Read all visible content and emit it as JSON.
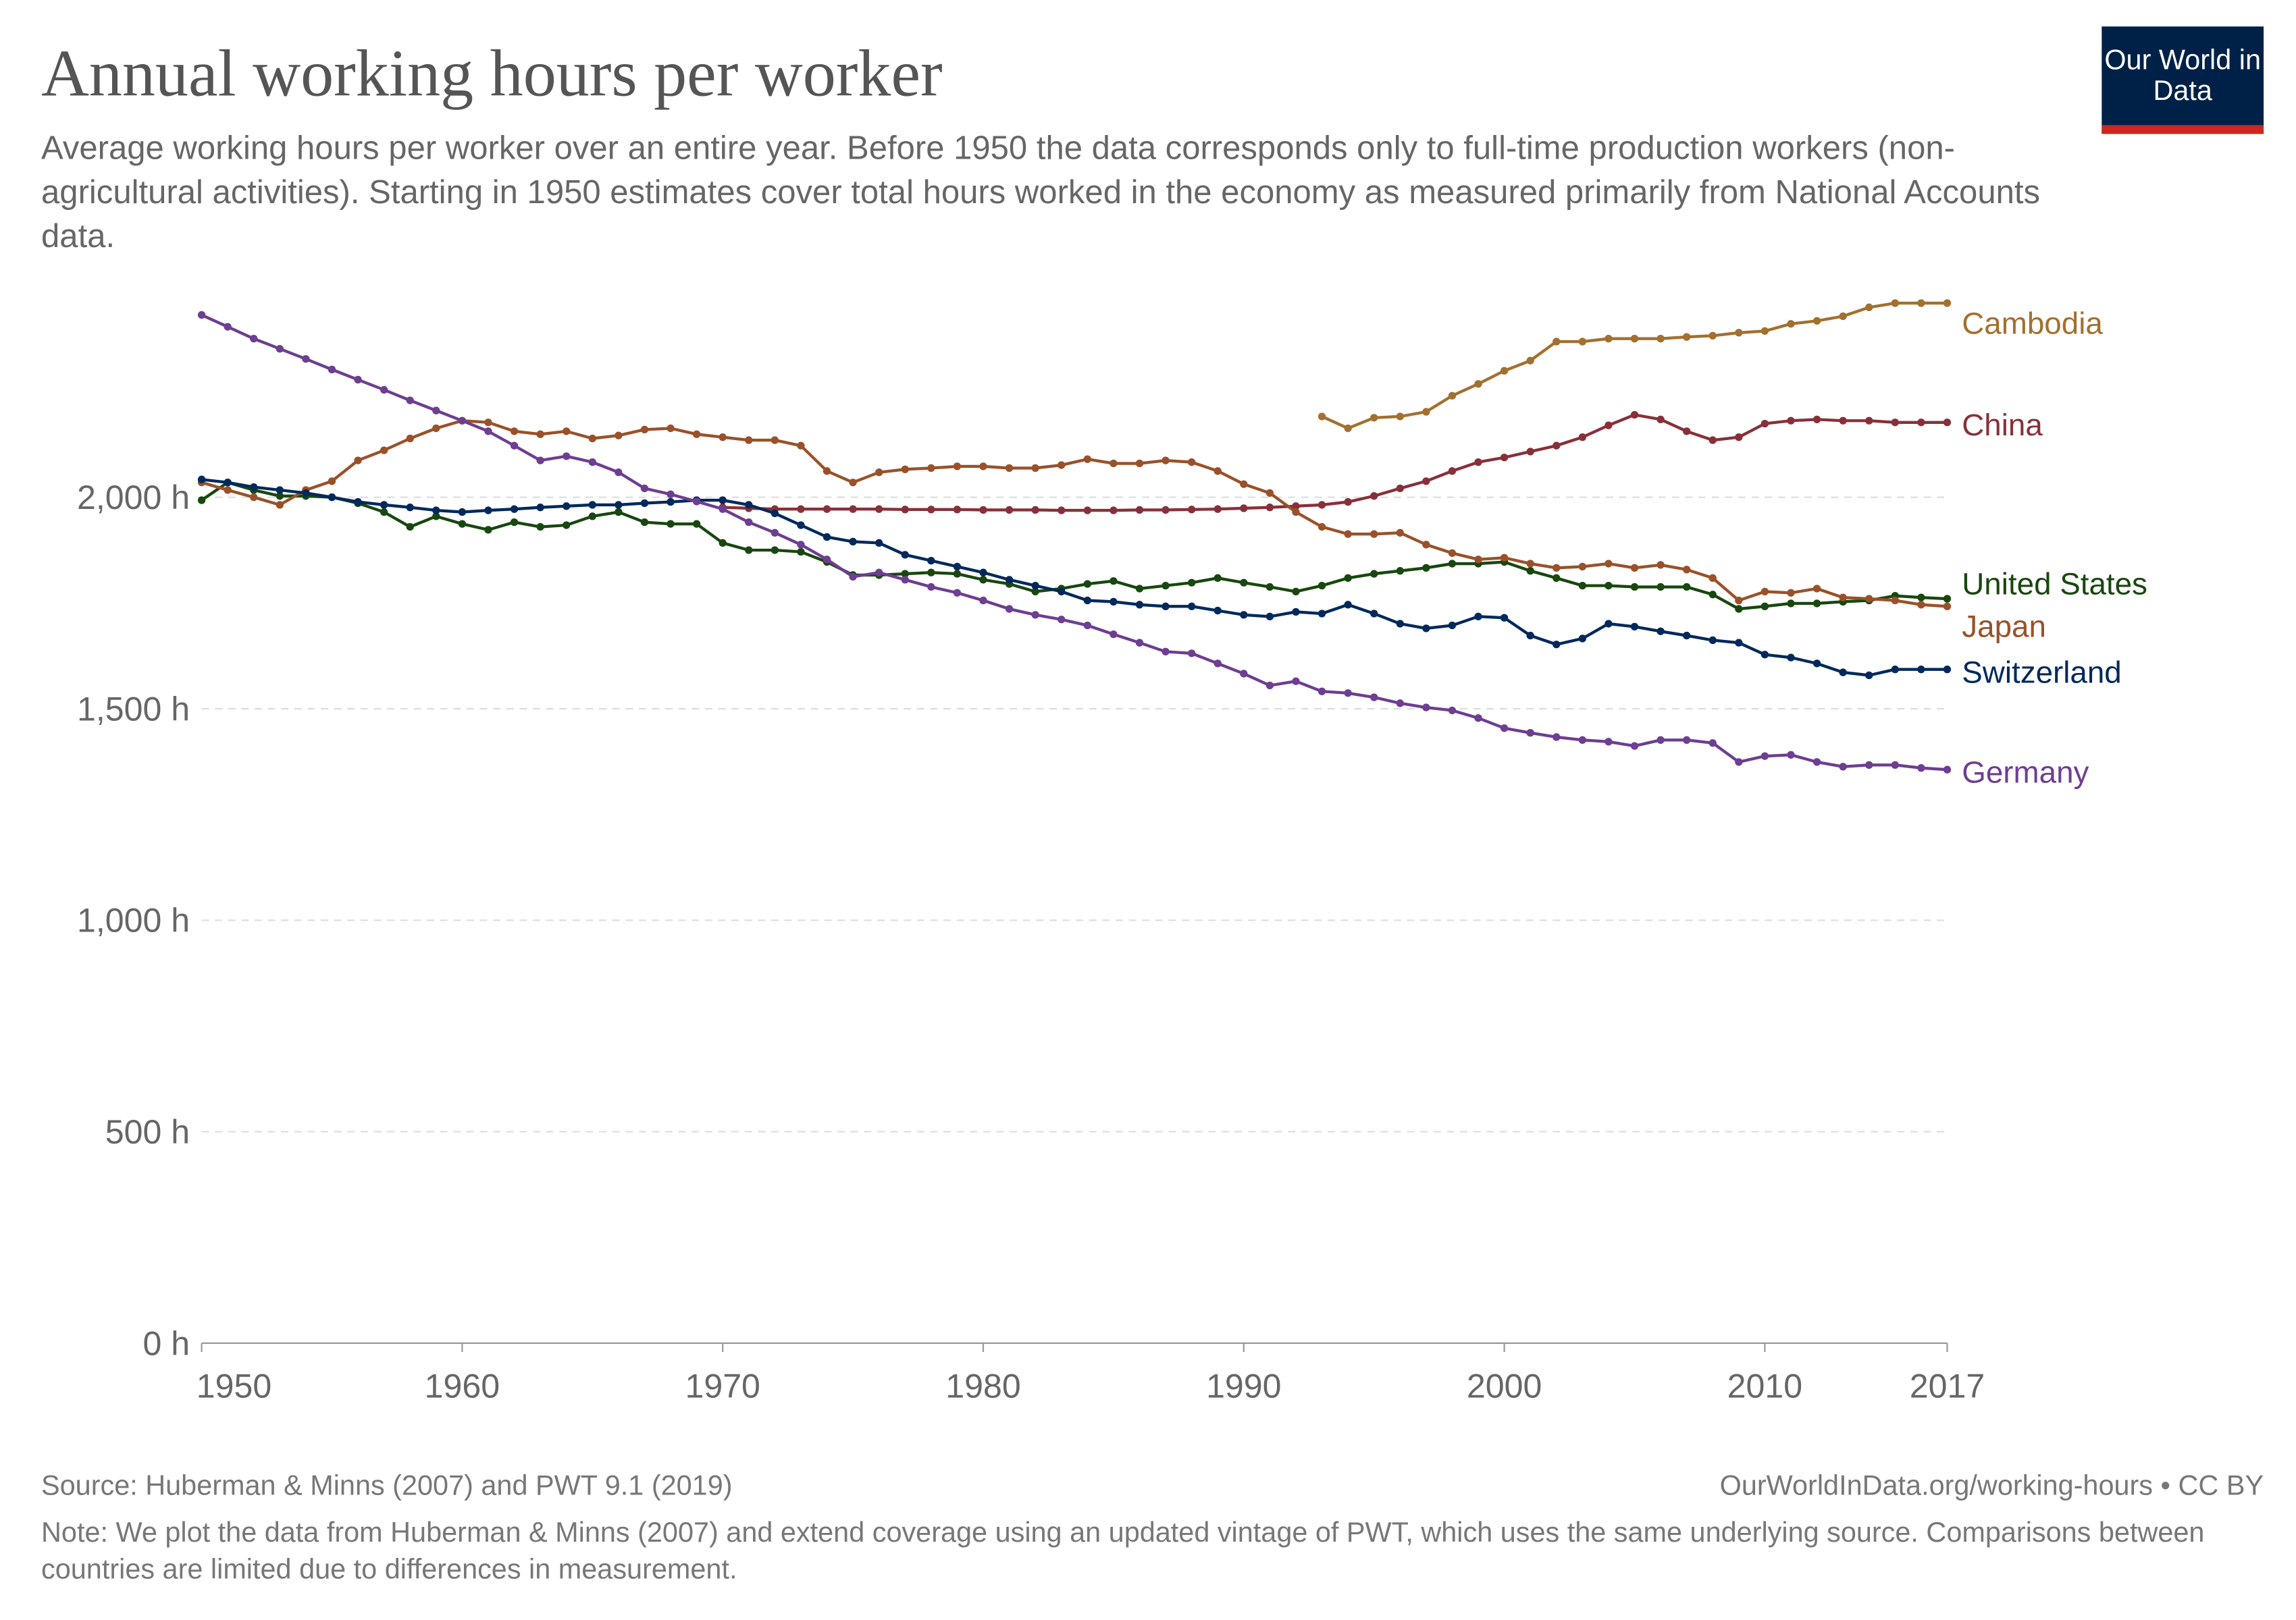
{
  "header": {
    "title": "Annual working hours per worker",
    "subtitle": "Average working hours per worker over an entire year. Before 1950 the data corresponds only to full-time production workers (non-agricultural activities). Starting in 1950 estimates cover total hours worked in the economy as measured primarily from National Accounts data.",
    "logo": "Our World in Data"
  },
  "footer": {
    "source": "Source: Huberman & Minns (2007) and PWT 9.1 (2019)",
    "url": "OurWorldInData.org/working-hours • CC BY",
    "note": "Note: We plot the data from Huberman & Minns (2007) and extend coverage using an updated vintage of PWT, which uses the same underlying source. Comparisons between countries are limited due to differences in measurement."
  },
  "chart_data": {
    "type": "line",
    "title": "Annual working hours per worker",
    "xlim": [
      1950,
      2017
    ],
    "ylim": [
      0,
      2500
    ],
    "x_ticks": [
      "1950",
      "1960",
      "1970",
      "1980",
      "1990",
      "2000",
      "2010",
      "2017"
    ],
    "y_ticks": [
      "0 h",
      "500 h",
      "1,000 h",
      "1,500 h",
      "2,000 h"
    ],
    "grid": "horizontal dashed",
    "legend": "line-end labels",
    "series": [
      {
        "name": "Cambodia",
        "color": "#a2702f",
        "start": 1993,
        "values": [
          2191,
          2163,
          2188,
          2191,
          2202,
          2240,
          2268,
          2299,
          2323,
          2368,
          2368,
          2375,
          2375,
          2375,
          2379,
          2382,
          2389,
          2393,
          2410,
          2417,
          2428,
          2449,
          2459,
          2459,
          2459
        ]
      },
      {
        "name": "China",
        "color": "#883039",
        "start": 1970,
        "values": [
          1976,
          1974,
          1972,
          1972,
          1972,
          1972,
          1972,
          1971,
          1971,
          1971,
          1970,
          1970,
          1970,
          1969,
          1969,
          1969,
          1970,
          1970,
          1971,
          1972,
          1974,
          1976,
          1979,
          1982,
          1989,
          2003,
          2021,
          2038,
          2062,
          2083,
          2094,
          2108,
          2122,
          2142,
          2170,
          2195,
          2184,
          2156,
          2135,
          2142,
          2174,
          2181,
          2184,
          2181,
          2181,
          2177,
          2177,
          2177
        ]
      },
      {
        "name": "United States",
        "color": "#18470f",
        "start": 1950,
        "values": [
          1993,
          2035,
          2017,
          2003,
          2003,
          2000,
          1986,
          1965,
          1930,
          1955,
          1937,
          1923,
          1941,
          1930,
          1934,
          1955,
          1965,
          1941,
          1937,
          1937,
          1892,
          1875,
          1875,
          1871,
          1847,
          1816,
          1816,
          1819,
          1822,
          1819,
          1805,
          1795,
          1777,
          1784,
          1795,
          1802,
          1784,
          1791,
          1798,
          1809,
          1798,
          1788,
          1777,
          1791,
          1809,
          1819,
          1826,
          1833,
          1843,
          1843,
          1847,
          1826,
          1809,
          1791,
          1791,
          1788,
          1788,
          1788,
          1770,
          1736,
          1742,
          1749,
          1749,
          1753,
          1756,
          1767,
          1763,
          1760
        ]
      },
      {
        "name": "Japan",
        "color": "#9a5129",
        "start": 1950,
        "values": [
          2035,
          2017,
          2000,
          1982,
          2017,
          2038,
          2087,
          2111,
          2139,
          2163,
          2181,
          2177,
          2156,
          2149,
          2156,
          2139,
          2146,
          2160,
          2163,
          2149,
          2142,
          2135,
          2135,
          2122,
          2062,
          2035,
          2059,
          2066,
          2069,
          2073,
          2073,
          2069,
          2069,
          2076,
          2090,
          2080,
          2080,
          2087,
          2083,
          2062,
          2031,
          2010,
          1965,
          1930,
          1913,
          1913,
          1916,
          1888,
          1868,
          1853,
          1857,
          1843,
          1833,
          1836,
          1843,
          1833,
          1840,
          1829,
          1809,
          1756,
          1777,
          1774,
          1784,
          1763,
          1760,
          1756,
          1746,
          1742
        ]
      },
      {
        "name": "Switzerland",
        "color": "#00295b",
        "start": 1950,
        "values": [
          2042,
          2035,
          2024,
          2017,
          2010,
          2000,
          1989,
          1982,
          1976,
          1969,
          1965,
          1969,
          1972,
          1976,
          1979,
          1982,
          1982,
          1986,
          1989,
          1993,
          1993,
          1982,
          1962,
          1934,
          1906,
          1895,
          1892,
          1864,
          1850,
          1836,
          1822,
          1805,
          1791,
          1777,
          1756,
          1753,
          1746,
          1742,
          1742,
          1732,
          1722,
          1718,
          1729,
          1725,
          1746,
          1725,
          1701,
          1690,
          1697,
          1718,
          1715,
          1673,
          1652,
          1666,
          1701,
          1694,
          1683,
          1673,
          1662,
          1656,
          1628,
          1621,
          1607,
          1586,
          1579,
          1593,
          1593,
          1593
        ]
      },
      {
        "name": "Germany",
        "color": "#6d3e91",
        "start": 1950,
        "values": [
          2431,
          2403,
          2375,
          2351,
          2327,
          2302,
          2278,
          2254,
          2229,
          2205,
          2181,
          2156,
          2122,
          2087,
          2097,
          2083,
          2059,
          2021,
          2007,
          1990,
          1972,
          1941,
          1916,
          1888,
          1853,
          1812,
          1822,
          1805,
          1788,
          1774,
          1756,
          1736,
          1722,
          1711,
          1697,
          1676,
          1656,
          1635,
          1631,
          1607,
          1583,
          1555,
          1565,
          1541,
          1537,
          1527,
          1513,
          1503,
          1496,
          1478,
          1454,
          1443,
          1433,
          1426,
          1422,
          1412,
          1426,
          1426,
          1419,
          1374,
          1388,
          1391,
          1374,
          1363,
          1367,
          1367,
          1360,
          1356
        ]
      }
    ]
  }
}
